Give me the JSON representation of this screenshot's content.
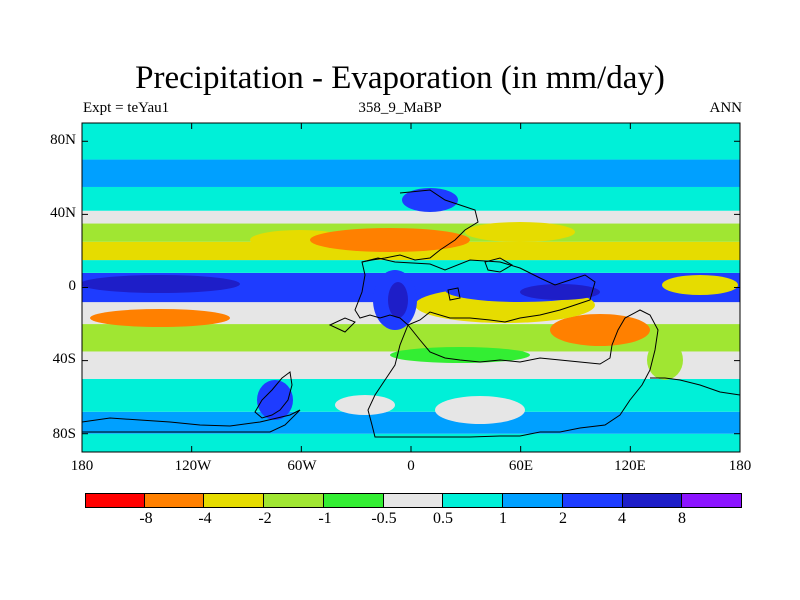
{
  "title": "Precipitation - Evaporation (in mm/day)",
  "subtitle_left": "Expt = teYau1",
  "subtitle_center": "358_9_MaBP",
  "subtitle_right": "ANN",
  "colors": {
    "bins": [
      "#ff0000",
      "#ff8000",
      "#e6dc00",
      "#a0e632",
      "#33ee33",
      "#e6e6e6",
      "#00f0d8",
      "#00a0ff",
      "#1e3cff",
      "#1e1ec8",
      "#8c14ff"
    ],
    "coast": "#000000"
  },
  "chart_data": {
    "type": "heatmap",
    "title": "Precipitation - Evaporation (in mm/day)",
    "x_ticks": [
      "180",
      "120W",
      "60W",
      "0",
      "60E",
      "120E",
      "180"
    ],
    "y_ticks": [
      "80N",
      "40N",
      "0",
      "40S",
      "80S"
    ],
    "xlim": [
      -180,
      180
    ],
    "ylim": [
      -90,
      90
    ],
    "colorbar_levels": [
      "-8",
      "-4",
      "-2",
      "-1",
      "-0.5",
      "0.5",
      "1",
      "2",
      "4",
      "8"
    ],
    "zonal_bands": [
      {
        "lat": [
          -90,
          -80
        ],
        "bin": 6
      },
      {
        "lat": [
          -80,
          -68
        ],
        "bin": 7
      },
      {
        "lat": [
          -68,
          -50
        ],
        "bin": 6
      },
      {
        "lat": [
          -50,
          -35
        ],
        "bin": 5
      },
      {
        "lat": [
          -35,
          -20
        ],
        "bin": 3
      },
      {
        "lat": [
          -20,
          -8
        ],
        "bin": 5
      },
      {
        "lat": [
          -8,
          8
        ],
        "bin": 8
      },
      {
        "lat": [
          8,
          15
        ],
        "bin": 6
      },
      {
        "lat": [
          15,
          25
        ],
        "bin": 2
      },
      {
        "lat": [
          25,
          35
        ],
        "bin": 3
      },
      {
        "lat": [
          35,
          42
        ],
        "bin": 5
      },
      {
        "lat": [
          42,
          55
        ],
        "bin": 6
      },
      {
        "lat": [
          55,
          70
        ],
        "bin": 7
      },
      {
        "lat": [
          70,
          90
        ],
        "bin": 6
      }
    ]
  }
}
